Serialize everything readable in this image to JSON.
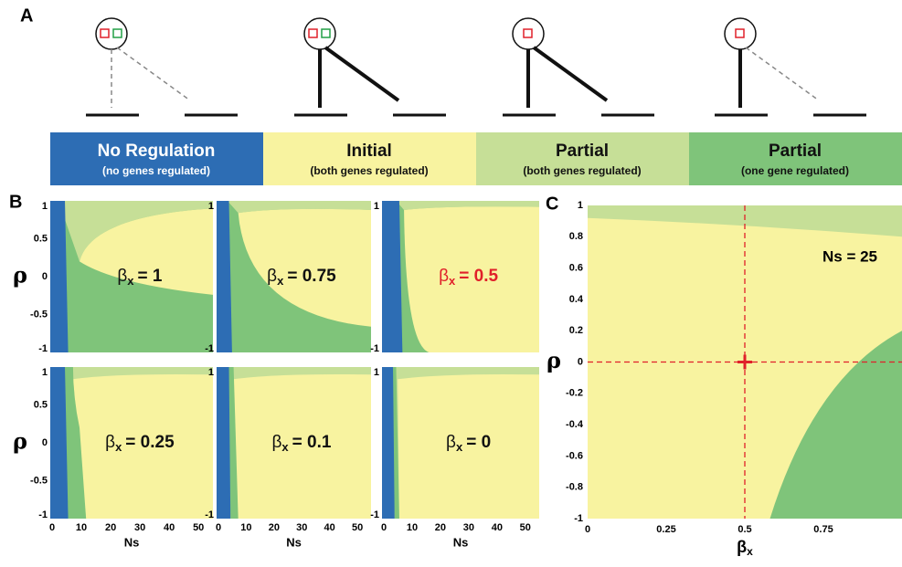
{
  "panel_labels": [
    "A",
    "B",
    "C"
  ],
  "legend": [
    {
      "title": "No Regulation",
      "subtitle": "(no genes regulated)",
      "color": "#2d6db4"
    },
    {
      "title": "Initial",
      "subtitle": "(both genes regulated)",
      "color": "#f8f3a0"
    },
    {
      "title": "Partial",
      "subtitle": "(both genes regulated)",
      "color": "#c6df97"
    },
    {
      "title": "Partial",
      "subtitle": "(one gene regulated)",
      "color": "#7fc47a"
    }
  ],
  "small_panels": {
    "xlabel": "Ns",
    "ylabel": "ρ",
    "symbol": "β",
    "sub": "x",
    "xticks": [
      0,
      10,
      20,
      30,
      40,
      50
    ],
    "yticks": [
      1,
      0.5,
      0,
      -0.5,
      -1
    ],
    "labels": [
      "= 1",
      "= 0.75",
      "= 0.5",
      "= 0.25",
      "= 0.1",
      "= 0"
    ]
  },
  "panel_c": {
    "annotation": "Ns = 25",
    "xlabel": "β",
    "xsub": "x",
    "ylabel": "ρ",
    "xticks": [
      0,
      0.25,
      0.5,
      0.75
    ],
    "yticks": [
      1,
      0.8,
      0.6,
      0.4,
      0.2,
      0,
      -0.2,
      -0.4,
      -0.6,
      -0.8,
      -1
    ],
    "marker": {
      "beta": 0.5,
      "rho": 0
    }
  }
}
